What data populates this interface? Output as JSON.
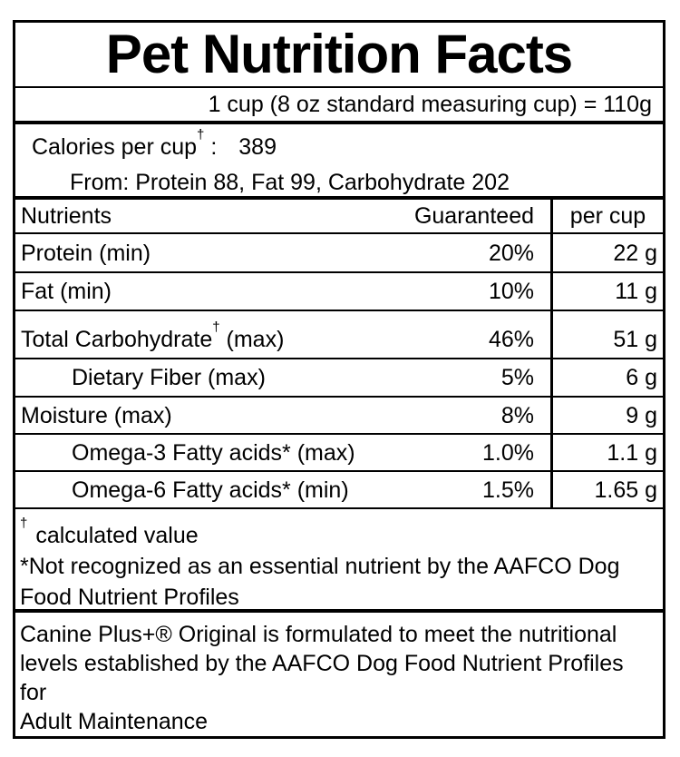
{
  "colors": {
    "ink": "#000000",
    "paper": "#ffffff"
  },
  "label": {
    "title": "Pet Nutrition Facts",
    "serving_line": "1 cup (8 oz standard measuring cup) = 110g",
    "calories": {
      "prefix": "Calories per cup",
      "dagger": "†",
      "colon": " :",
      "value": "389",
      "from_line": "From: Protein 88, Fat 99, Carbohydrate 202"
    },
    "table": {
      "headers": {
        "nutrients": "Nutrients",
        "guaranteed": "Guaranteed",
        "per_cup": "per cup"
      },
      "rows": [
        {
          "name": "Protein (min)",
          "sup": "",
          "suffix": "",
          "guaranteed": "20%",
          "per_cup": "22 g"
        },
        {
          "name": "Fat (min)",
          "sup": "",
          "suffix": "",
          "guaranteed": "10%",
          "per_cup": "11 g"
        },
        {
          "name": "Total Carbohydrate",
          "sup": "†",
          "suffix": " (max)",
          "guaranteed": "46%",
          "per_cup": "51 g"
        },
        {
          "name": "Dietary Fiber (max)",
          "sup": "",
          "suffix": "",
          "guaranteed": "5%",
          "per_cup": "6 g"
        },
        {
          "name": "Moisture (max)",
          "sup": "",
          "suffix": "",
          "guaranteed": "8%",
          "per_cup": "9 g"
        },
        {
          "name": "Omega-3 Fatty acids* (max)",
          "sup": "",
          "suffix": "",
          "guaranteed": "1.0%",
          "per_cup": "1.1 g"
        },
        {
          "name": "Omega-6 Fatty acids* (min)",
          "sup": "",
          "suffix": "",
          "guaranteed": "1.5%",
          "per_cup": "1.65 g"
        }
      ]
    },
    "footnotes": {
      "dagger": "†",
      "dagger_text": "calculated value",
      "asterisk_note": "*Not recognized as an essential nutrient by the AAFCO Dog\nFood Nutrient Profiles"
    },
    "statement": "Canine Plus+® Original is formulated to meet the nutritional\nlevels established by the AAFCO Dog Food Nutrient Profiles for\nAdult Maintenance"
  }
}
